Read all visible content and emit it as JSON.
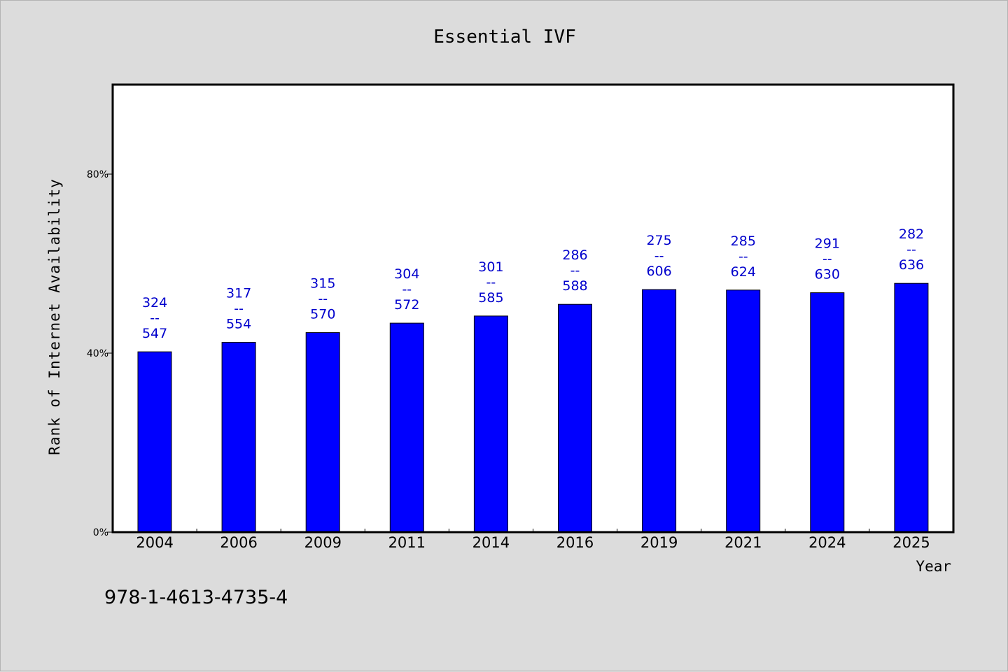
{
  "chart_data": {
    "type": "bar",
    "title": "Essential IVF",
    "xlabel": "Year",
    "ylabel": "Rank of Internet Availability",
    "categories": [
      "2004",
      "2006",
      "2009",
      "2011",
      "2014",
      "2016",
      "2019",
      "2021",
      "2024",
      "2025"
    ],
    "values": [
      40.3,
      42.4,
      44.6,
      46.7,
      48.3,
      50.9,
      54.2,
      54.1,
      53.5,
      55.6
    ],
    "data_labels": [
      [
        "324",
        "--",
        "547"
      ],
      [
        "317",
        "--",
        "554"
      ],
      [
        "315",
        "--",
        "570"
      ],
      [
        "304",
        "--",
        "572"
      ],
      [
        "301",
        "--",
        "585"
      ],
      [
        "286",
        "--",
        "588"
      ],
      [
        "275",
        "--",
        "606"
      ],
      [
        "285",
        "--",
        "624"
      ],
      [
        "291",
        "--",
        "630"
      ],
      [
        "282",
        "--",
        "636"
      ]
    ],
    "ylim": [
      0,
      100
    ],
    "yticks": [
      0,
      40,
      80
    ],
    "ytick_labels": [
      "0%",
      "40%",
      "80%"
    ],
    "bar_color": "#0000ff",
    "label_color": "#0000cc",
    "grid": false
  },
  "footer_note": "978-1-4613-4735-4"
}
